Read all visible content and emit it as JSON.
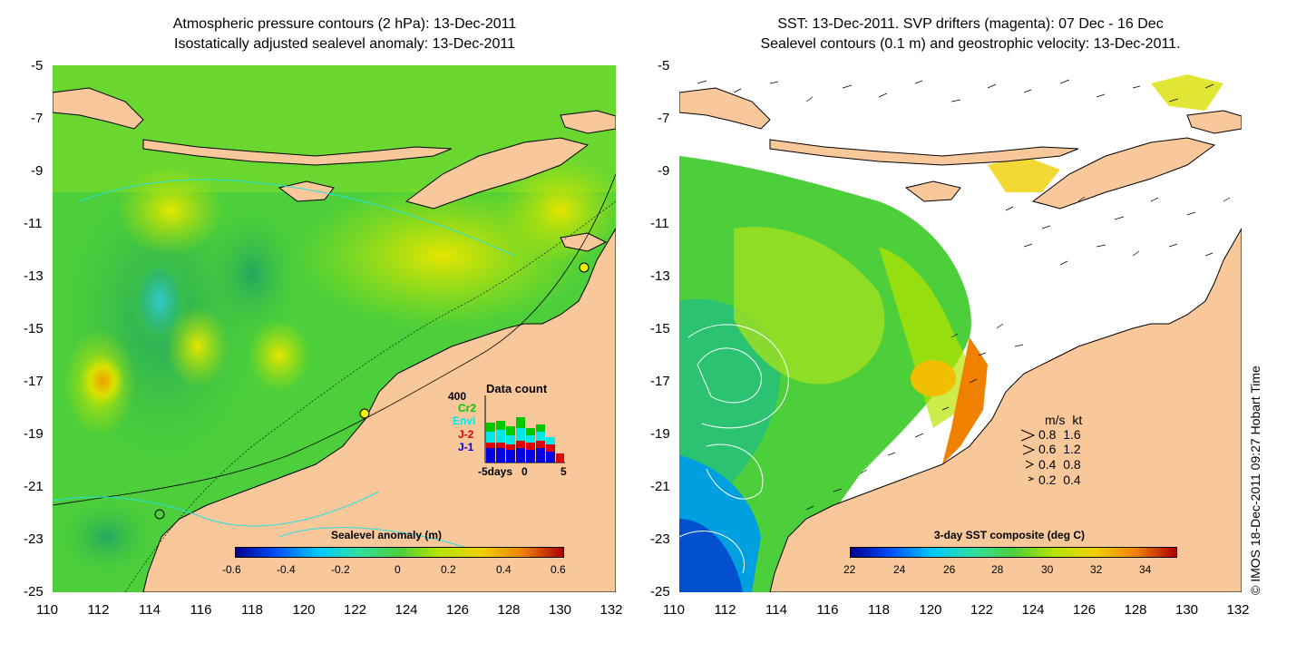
{
  "left": {
    "title1": "Atmospheric pressure contours (2 hPa): 13-Dec-2011",
    "title2": "Isostatically adjusted sealevel anomaly: 13-Dec-2011",
    "colorbar_title": "Sealevel anomaly (m)",
    "colorbar_labels": [
      "-0.6",
      "-0.4",
      "-0.2",
      "0",
      "0.2",
      "0.4",
      "0.6"
    ],
    "data_count": {
      "title": "Data count",
      "ymax": "400",
      "satellites": [
        {
          "name": "Cr2",
          "color": "#00c800"
        },
        {
          "name": "Envi",
          "color": "#00e8e8"
        },
        {
          "name": "J-2",
          "color": "#e00000"
        },
        {
          "name": "J-1",
          "color": "#0000e0"
        }
      ],
      "xlabels": [
        "-5days",
        "0",
        "5"
      ]
    }
  },
  "right": {
    "title1": "SST: 13-Dec-2011. SVP drifters (magenta): 07 Dec - 16 Dec",
    "title2": "Sealevel contours (0.1 m) and geostrophic velocity: 13-Dec-2011.",
    "colorbar_title": "3-day SST composite (deg C)",
    "colorbar_labels": [
      "22",
      "24",
      "26",
      "28",
      "30",
      "32",
      "34"
    ],
    "speed_legend": {
      "header": "m/s  kt",
      "rows": [
        "0.8  1.6",
        "0.6  1.2",
        "0.4  0.8",
        "0.2  0.4"
      ]
    }
  },
  "axes": {
    "x_ticks": [
      "110",
      "112",
      "114",
      "116",
      "118",
      "120",
      "122",
      "124",
      "126",
      "128",
      "130",
      "132"
    ],
    "y_ticks": [
      "-5",
      "-7",
      "-9",
      "-11",
      "-13",
      "-15",
      "-17",
      "-19",
      "-21",
      "-23",
      "-25"
    ]
  },
  "footer": "© IMOS 18-Dec-2011 09:27 Hobart Time",
  "colors": {
    "land": "#f9c89a",
    "ocean_green": "#4ccf3a",
    "sst_white": "#ffffff"
  }
}
